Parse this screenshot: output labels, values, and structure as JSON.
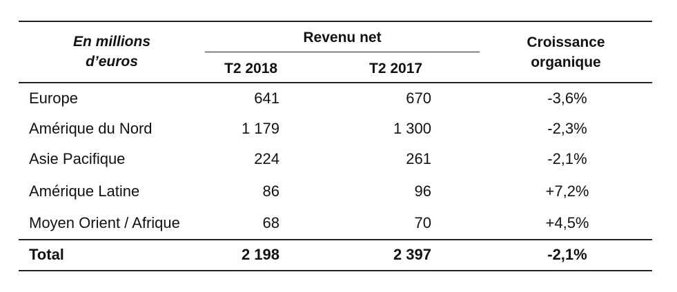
{
  "header": {
    "unit_line1": "En millions",
    "unit_line2": "d’euros",
    "group_label": "Revenu net",
    "col_t2_2018": "T2 2018",
    "col_t2_2017": "T2 2017",
    "growth_line1": "Croissance",
    "growth_line2": "organique"
  },
  "rows": [
    {
      "region": "Europe",
      "t2_2018": "641",
      "t2_2017": "670",
      "growth": "-3,6%"
    },
    {
      "region": "Amérique du Nord",
      "t2_2018": "1 179",
      "t2_2017": "1 300",
      "growth": "-2,3%"
    },
    {
      "region": "Asie Pacifique",
      "t2_2018": "224",
      "t2_2017": "261",
      "growth": "-2,1%"
    },
    {
      "region": "Amérique Latine",
      "t2_2018": "86",
      "t2_2017": "96",
      "growth": "+7,2%"
    },
    {
      "region": "Moyen Orient / Afrique",
      "t2_2018": "68",
      "t2_2017": "70",
      "growth": "+4,5%"
    }
  ],
  "total": {
    "label": "Total",
    "t2_2018": "2 198",
    "t2_2017": "2 397",
    "growth": "-2,1%"
  }
}
